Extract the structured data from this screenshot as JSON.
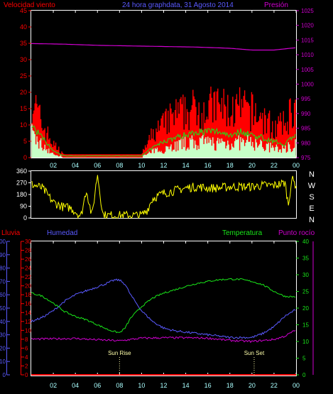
{
  "colors": {
    "red": "#ff0000",
    "blue": "#5a5aff",
    "magenta": "#d000d0",
    "green": "#19e619",
    "yellow": "#ffff00",
    "white": "#ffffff",
    "gray": "#bdbdbd",
    "pale": "#c8ffc8",
    "cyan": "#aaffff",
    "sun": "#ffffaa"
  },
  "chart_data": [
    {
      "type": "line",
      "panel": "wind-pressure",
      "title": "24 hora graphdata, 31 Agosto 2014",
      "left_label": "Velocidad viento",
      "right_label": "Presión",
      "x_ticks": [
        "02",
        "04",
        "06",
        "08",
        "10",
        "12",
        "14",
        "16",
        "18",
        "20",
        "22",
        "00"
      ],
      "left_ticks": [
        "0",
        "5",
        "10",
        "15",
        "20",
        "25",
        "30",
        "35",
        "40",
        "45"
      ],
      "right_ticks": [
        "975",
        "980",
        "985",
        "990",
        "995",
        "1000",
        "1005",
        "1010",
        "1015",
        "1020",
        "1025"
      ],
      "ylim_left": [
        0,
        45
      ],
      "ylim_right": [
        975,
        1025
      ],
      "series": [
        {
          "role": "pressure",
          "color": "magenta",
          "x": [
            0,
            3,
            6,
            9,
            12,
            15,
            18,
            20,
            22,
            24
          ],
          "y": [
            1013.8,
            1013.6,
            1013.2,
            1013.0,
            1012.8,
            1012.6,
            1012.2,
            1011.6,
            1011.6,
            1012.4
          ]
        },
        {
          "role": "gust",
          "color": "red",
          "x": [
            0,
            0.5,
            1,
            1.5,
            2,
            3,
            10,
            11,
            12,
            13,
            14,
            15,
            16,
            17,
            18,
            19,
            20,
            21,
            22,
            23,
            23.5,
            24
          ],
          "y": [
            20,
            14,
            10,
            7,
            4,
            1,
            1,
            7,
            10,
            13,
            14,
            15,
            15,
            16,
            14,
            15,
            14,
            12,
            9,
            10,
            14,
            15
          ]
        },
        {
          "role": "average",
          "color": "green",
          "x": [
            0,
            0.5,
            1,
            1.5,
            2,
            3,
            10,
            11,
            12,
            13,
            14,
            15,
            16,
            17,
            18,
            19,
            20,
            21,
            22,
            23,
            23.5,
            24
          ],
          "y": [
            10,
            8,
            6,
            4,
            2,
            0.5,
            0.5,
            3,
            5,
            6,
            7,
            8,
            8,
            8,
            7,
            8,
            7,
            6,
            5,
            4,
            6,
            7
          ]
        },
        {
          "role": "speed",
          "color": "pale",
          "x": [
            0,
            0.5,
            1,
            1.5,
            2,
            3,
            10,
            11,
            12,
            13,
            14,
            15,
            16,
            17,
            18,
            19,
            20,
            21,
            22,
            23,
            23.5,
            24
          ],
          "y": [
            8,
            6,
            4,
            3,
            1,
            0.3,
            0.3,
            2,
            3,
            4,
            5,
            5,
            5,
            5,
            5,
            5,
            5,
            4,
            3,
            3,
            4,
            5
          ]
        }
      ]
    },
    {
      "type": "scatter",
      "panel": "wind-direction",
      "left_ticks": [
        "0",
        "90",
        "180",
        "270",
        "360"
      ],
      "right_labels": [
        "N",
        "W",
        "S",
        "E",
        "N"
      ],
      "ylim": [
        0,
        360
      ],
      "series": [
        {
          "role": "direction",
          "color": "yellow",
          "x": [
            0,
            1,
            2,
            3,
            3.5,
            4,
            4.5,
            5,
            5.5,
            6,
            6.5,
            7,
            7.5,
            8,
            9,
            10,
            10.5,
            11,
            12,
            13,
            14,
            15,
            16,
            17,
            18,
            19,
            20,
            21,
            22,
            23,
            23.3,
            23.6,
            24
          ],
          "y": [
            260,
            230,
            120,
            80,
            80,
            50,
            10,
            220,
            10,
            340,
            20,
            20,
            20,
            20,
            20,
            20,
            60,
            150,
            190,
            210,
            230,
            240,
            230,
            230,
            240,
            240,
            240,
            250,
            250,
            270,
            100,
            300,
            250
          ]
        }
      ]
    },
    {
      "type": "line",
      "panel": "rain-humidity-temperature",
      "labels": {
        "rain": "Lluvia",
        "humidity": "Humedad",
        "temperature": "Temperatura",
        "dewpoint": "Punto rocío"
      },
      "x_ticks": [
        "02",
        "04",
        "06",
        "08",
        "10",
        "12",
        "14",
        "16",
        "18",
        "20",
        "22",
        "00"
      ],
      "humidity_ticks": [
        "0",
        "10",
        "20",
        "30",
        "40",
        "50",
        "60",
        "70",
        "80",
        "90",
        "100"
      ],
      "rain_ticks": [
        "0",
        "2",
        "4",
        "6",
        "8",
        "10",
        "12",
        "14",
        "16",
        "18",
        "20",
        "22",
        "24",
        "26",
        "28",
        "30"
      ],
      "temperature_ticks": [
        "0",
        "5",
        "10",
        "15",
        "20",
        "25",
        "30",
        "35",
        "40"
      ],
      "annotations": [
        {
          "text": "Sun Rise",
          "x": 8.0
        },
        {
          "text": "Sun Set",
          "x": 20.2
        }
      ],
      "series": [
        {
          "role": "rain",
          "color": "red",
          "x": [
            0,
            24
          ],
          "y": [
            0,
            0
          ]
        },
        {
          "role": "humidity",
          "color": "blue",
          "x": [
            0,
            1,
            2,
            3,
            4,
            5,
            6,
            7,
            7.5,
            8,
            8.5,
            9,
            10,
            11,
            12,
            13,
            14,
            15,
            16,
            17,
            18,
            19,
            20,
            21,
            22,
            23,
            24
          ],
          "y": [
            40,
            43,
            48,
            55,
            60,
            63,
            66,
            69,
            71,
            71,
            68,
            60,
            48,
            40,
            35,
            33,
            32,
            31,
            30,
            29,
            28,
            28,
            28,
            31,
            36,
            44,
            49
          ]
        },
        {
          "role": "temperature",
          "color": "green",
          "x": [
            0,
            1,
            2,
            3,
            4,
            5,
            6,
            7,
            7.5,
            8,
            8.5,
            9,
            10,
            11,
            12,
            13,
            14,
            15,
            16,
            17,
            18,
            19,
            20,
            21,
            22,
            23,
            24
          ],
          "y": [
            24.5,
            23.6,
            21.5,
            19,
            17.5,
            16.5,
            15,
            13.5,
            13,
            12.6,
            14,
            17,
            20.5,
            23,
            24.5,
            25.5,
            26.5,
            27.4,
            28,
            28.5,
            28.7,
            28.6,
            28,
            27,
            25,
            23.5,
            23.4
          ]
        },
        {
          "role": "dewpoint",
          "color": "magenta",
          "x": [
            0,
            2,
            4,
            6,
            8,
            9,
            10,
            12,
            14,
            16,
            18,
            20,
            22,
            23,
            24
          ],
          "y": [
            10.7,
            10.8,
            10.9,
            10.5,
            10.2,
            10.6,
            11,
            11.1,
            11.1,
            11,
            10.3,
            10,
            10.6,
            11.6,
            13.5
          ]
        }
      ]
    }
  ]
}
